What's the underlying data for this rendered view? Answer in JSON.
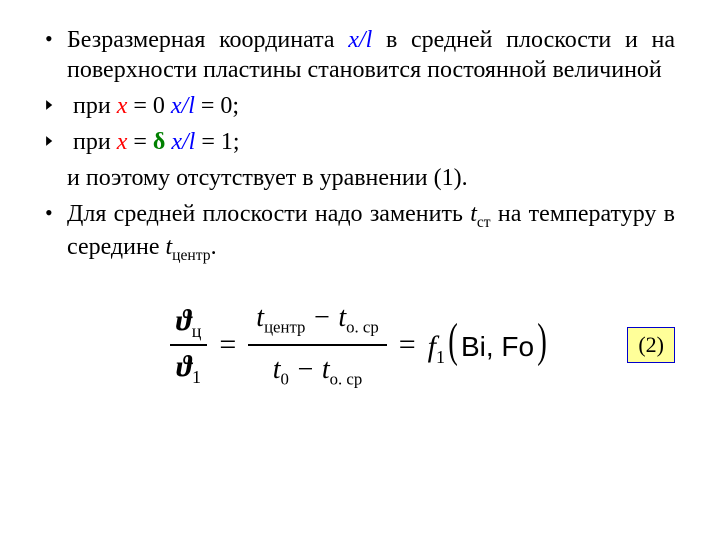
{
  "colors": {
    "xl": "#0000ff",
    "x": "#ff0000",
    "delta": "#008000",
    "text": "#000000",
    "eqnum_bg": "#ffff99",
    "eqnum_border": "#0000cc",
    "bg": "#ffffff"
  },
  "font": {
    "body_family": "Times New Roman",
    "body_size_pt": 18,
    "formula_size_pt": 22
  },
  "bullet1": {
    "pre": "Безразмерная координата ",
    "xl": "x/l",
    "post": " в средней плоскости и на поверхности пластины становится постоянной величиной"
  },
  "sub1": {
    "pre": "при ",
    "x": "x",
    "mid": " = 0   ",
    "xl": "x/l",
    "post": " = 0;"
  },
  "sub2": {
    "pre": "при ",
    "x": "x",
    "mid": " = ",
    "delta": "δ",
    "mid2": "   ",
    "xl": "x/l",
    "post": " = 1;"
  },
  "line_absent": "и поэтому отсутствует в уравнении (1).",
  "bullet2": {
    "pre": "Для средней плоскости надо заменить ",
    "t1": "t",
    "t1sub": "ст",
    "mid": " на температуру в середине ",
    "t2": "t",
    "t2sub": "центр",
    "post": "."
  },
  "formula": {
    "left_num": "ϑ",
    "left_num_sub": "ц",
    "left_den": "ϑ",
    "left_den_sub": "1",
    "mid_num_a": "t",
    "mid_num_a_sub": "центр",
    "mid_num_minus": " − ",
    "mid_num_b": "t",
    "mid_num_b_sub": "о. ср",
    "mid_den_a": "t",
    "mid_den_a_sub": "0",
    "mid_den_minus": " − ",
    "mid_den_b": "t",
    "mid_den_b_sub": "о. ср",
    "fn": "f",
    "fn_sub": "1",
    "args": "Bi, Fo",
    "eq": "="
  },
  "eqnum": "(2)"
}
